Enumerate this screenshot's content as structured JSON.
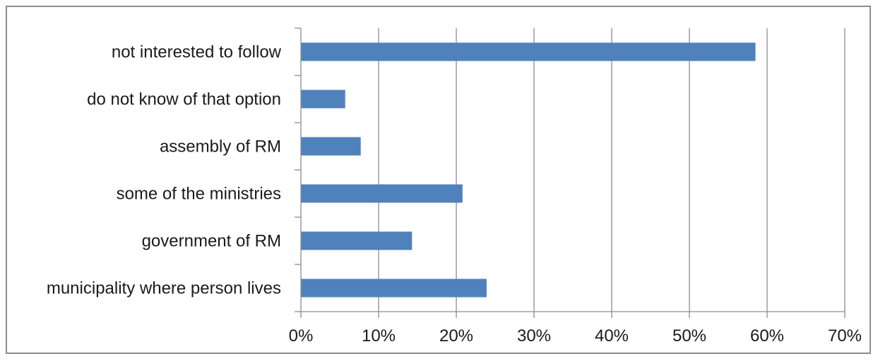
{
  "chart_data": {
    "type": "bar",
    "orientation": "horizontal",
    "categories": [
      "not interested to follow",
      "do not know of that option",
      "assembly of RM",
      "some of the ministries",
      "government of RM",
      "municipality where person lives"
    ],
    "values": [
      58.5,
      5.7,
      7.7,
      20.8,
      14.3,
      23.9
    ],
    "xlim": [
      0,
      70
    ],
    "xticks": [
      "0%",
      "10%",
      "20%",
      "30%",
      "40%",
      "50%",
      "60%",
      "70%"
    ],
    "xtick_values": [
      0,
      10,
      20,
      30,
      40,
      50,
      60,
      70
    ],
    "grid": "vertical",
    "legend": "none",
    "bar_color": "#4f81bd",
    "grid_color": "#8c8c8c",
    "axis_color": "#8c8c8c"
  }
}
